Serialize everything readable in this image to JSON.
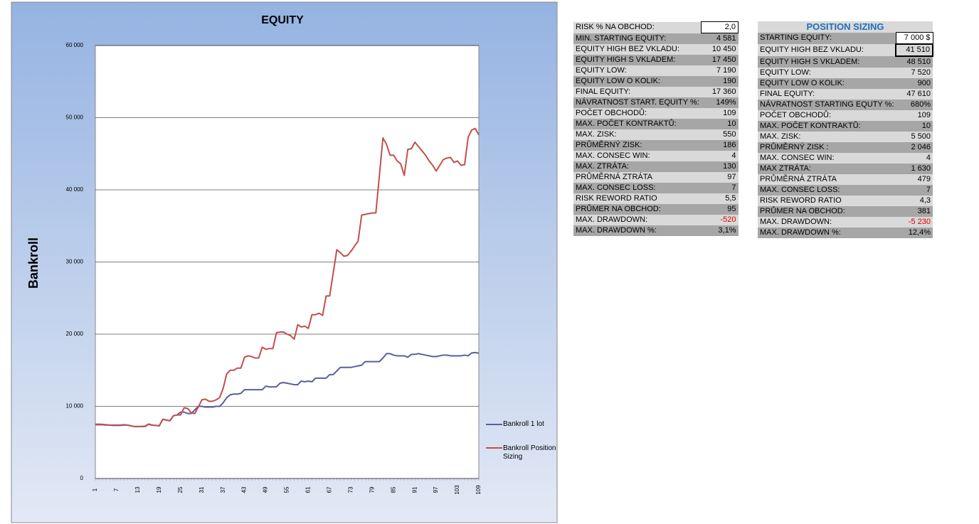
{
  "chart_data": {
    "type": "line",
    "title": "EQUITY",
    "y_label": "Bankroll",
    "categories": [
      1,
      null,
      null,
      null,
      null,
      null,
      7,
      null,
      null,
      null,
      null,
      null,
      13,
      null,
      null,
      null,
      null,
      null,
      19,
      null,
      null,
      null,
      null,
      null,
      25,
      null,
      null,
      null,
      null,
      null,
      31,
      null,
      null,
      null,
      null,
      null,
      37,
      null,
      null,
      null,
      null,
      null,
      43,
      null,
      null,
      null,
      null,
      null,
      49,
      null,
      null,
      null,
      null,
      null,
      55,
      null,
      null,
      null,
      null,
      null,
      61,
      null,
      null,
      null,
      null,
      null,
      67,
      null,
      null,
      null,
      null,
      null,
      73,
      null,
      null,
      null,
      null,
      null,
      79,
      null,
      null,
      null,
      null,
      null,
      85,
      null,
      null,
      null,
      null,
      null,
      91,
      null,
      null,
      null,
      null,
      null,
      97,
      null,
      null,
      null,
      null,
      null,
      103,
      null,
      null,
      null,
      null,
      null,
      109
    ],
    "series": [
      {
        "name": "Bankroll 1 lot",
        "color": "#5a5f9c",
        "values": [
          7450,
          7450,
          7450,
          7400,
          7400,
          7350,
          7350,
          7350,
          7400,
          7400,
          7300,
          7200,
          7200,
          7200,
          7200,
          7500,
          7400,
          7350,
          7300,
          8200,
          8100,
          8000,
          8700,
          8800,
          9200,
          9200,
          9000,
          9000,
          9500,
          10000,
          10000,
          9900,
          9900,
          9900,
          10000,
          10000,
          10500,
          11200,
          11600,
          11700,
          11700,
          11800,
          12300,
          12300,
          12300,
          12300,
          12300,
          12300,
          12800,
          12700,
          12700,
          12700,
          13200,
          13300,
          13200,
          13100,
          13000,
          13000,
          13500,
          13400,
          13500,
          13400,
          13900,
          13900,
          13900,
          13900,
          14400,
          14400,
          14900,
          15400,
          15400,
          15400,
          15400,
          15500,
          15600,
          15700,
          16200,
          16200,
          16200,
          16200,
          16200,
          16700,
          17300,
          17300,
          17100,
          17000,
          17000,
          17000,
          16800,
          17200,
          17200,
          17300,
          17200,
          17100,
          17000,
          16900,
          16900,
          17000,
          17100,
          17100,
          17000,
          17000,
          17000,
          17000,
          17100,
          17000,
          17400,
          17450,
          17360
        ]
      },
      {
        "name": "Bankroll Position Sizing",
        "color": "#c0504d",
        "values": [
          7520,
          7520,
          7500,
          7450,
          7400,
          7400,
          7400,
          7400,
          7450,
          7400,
          7300,
          7200,
          7200,
          7200,
          7250,
          7550,
          7400,
          7350,
          7300,
          8200,
          8100,
          8000,
          8700,
          8800,
          8800,
          9800,
          9700,
          9100,
          9000,
          9900,
          10900,
          11000,
          10700,
          10700,
          10900,
          11200,
          12500,
          14500,
          15000,
          15000,
          15300,
          15300,
          16800,
          17000,
          16900,
          16700,
          16700,
          18200,
          17900,
          18000,
          18000,
          20200,
          20300,
          20300,
          20000,
          19800,
          19300,
          21300,
          21000,
          21100,
          20800,
          22700,
          22700,
          22900,
          22600,
          25300,
          25300,
          28500,
          31700,
          31300,
          30800,
          30900,
          31500,
          32200,
          32900,
          36500,
          36600,
          36700,
          36800,
          36800,
          42000,
          47200,
          46300,
          44800,
          44800,
          44000,
          43600,
          42000,
          45600,
          45700,
          46600,
          46000,
          45400,
          44800,
          44000,
          43400,
          42600,
          43400,
          44200,
          44400,
          44500,
          43800,
          44000,
          43400,
          43500,
          47300,
          48300,
          48500,
          47610
        ]
      }
    ],
    "ylim": [
      0,
      60000
    ],
    "yticks": [
      0,
      {
        "value": 10000,
        "label": "10 000"
      },
      {
        "value": 20000,
        "label": "20 000"
      },
      {
        "value": 30000,
        "label": "30 000"
      },
      {
        "value": 40000,
        "label": "40 000"
      },
      {
        "value": 50000,
        "label": "50 000"
      },
      {
        "value": 60000,
        "label": "60 000"
      }
    ],
    "grid": true
  },
  "left_table": {
    "rows": [
      [
        "RISK % NA OBCHOD:",
        "2,0"
      ],
      [
        "MIN. STARTING EQUITY:",
        "4 581"
      ],
      [
        "EQUITY HIGH BEZ VKLADU:",
        "10 450"
      ],
      [
        "EQUITY HIGH S VKLADEM:",
        "17 450"
      ],
      [
        "EQUITY LOW:",
        "7 190"
      ],
      [
        "EQUITY LOW O KOLIK:",
        "190"
      ],
      [
        "FINAL EQUITY:",
        "17 360"
      ],
      [
        "NÁVRATNOST START. EQUITY %:",
        "149%"
      ],
      [
        "POČET OBCHODŮ:",
        "109"
      ],
      [
        "MAX. POČET KONTRAKTŮ:",
        "10"
      ],
      [
        "MAX. ZISK:",
        "550"
      ],
      [
        "PRŮMĚRNÝ ZISK:",
        "186"
      ],
      [
        "MAX. CONSEC WIN:",
        "4"
      ],
      [
        "MAX. ZTRÁTA:",
        "130"
      ],
      [
        "PRŮMĚRNÁ ZTRÁTA",
        "97"
      ],
      [
        "MAX. CONSEC LOSS:",
        "7"
      ],
      [
        "RISK REWORD RATIO",
        "5,5"
      ],
      [
        "PRŮMER NA OBCHOD:",
        "95"
      ],
      [
        "MAX. DRAWDOWN:",
        "-520"
      ],
      [
        "MAX. DRAWDOWN %:",
        "3,1%"
      ]
    ]
  },
  "right_table": {
    "title": "POSITION SIZING",
    "rows": [
      [
        "STARTING EQUITY:",
        "7 000 $"
      ],
      [
        "EQUITY HIGH BEZ VKLADU:",
        "41 510"
      ],
      [
        "EQUITY HIGH S VKLADEM:",
        "48 510"
      ],
      [
        "EQUITY LOW:",
        "7 520"
      ],
      [
        "EQUITY LOW O KOLIK:",
        "900"
      ],
      [
        "FINAL EQUITY:",
        "47 610"
      ],
      [
        "NÁVRATNOST STARTING EQUTY %:",
        "680%"
      ],
      [
        "POČET OBCHODŮ:",
        "109"
      ],
      [
        "MAX. POČET KONTRAKTŮ:",
        "10"
      ],
      [
        "MAX. ZISK:",
        "5 500"
      ],
      [
        "PRŮMĚRNÝ ZISK :",
        "2 046"
      ],
      [
        "MAX. CONSEC WIN:",
        "4"
      ],
      [
        "MAX ZTRÁTA:",
        "1 630"
      ],
      [
        "PRŮMĚRNÁ ZTRÁTA",
        "479"
      ],
      [
        "MAX. CONSEC LOSS:",
        "7"
      ],
      [
        "RISK REWORD RATIO",
        "4,3"
      ],
      [
        "PRŮMER NA OBCHOD:",
        "381"
      ],
      [
        "MAX. DRAWDOWN:",
        "-5 230"
      ],
      [
        "MAX. DRAWDOWN %:",
        "12,4%"
      ]
    ]
  }
}
